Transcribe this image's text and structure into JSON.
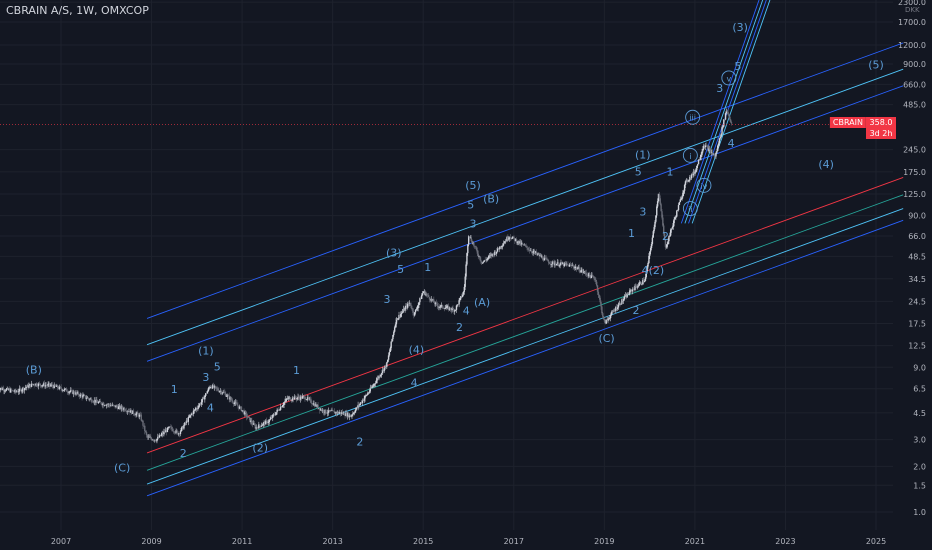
{
  "header": {
    "title": "CBRAIN A/S, 1W, OMXCOP"
  },
  "price_scale": {
    "unit": "DKK",
    "ticks": [
      "2300.0",
      "1700.0",
      "1200.0",
      "900.0",
      "660.0",
      "485.0",
      "245.0",
      "175.0",
      "125.0",
      "90.0",
      "66.0",
      "48.5",
      "34.5",
      "24.5",
      "17.5",
      "12.5",
      "9.0",
      "6.5",
      "4.5",
      "3.0",
      "2.0",
      "1.5",
      "1.0"
    ]
  },
  "time_scale": {
    "ticks": [
      "2007",
      "2009",
      "2011",
      "2013",
      "2015",
      "2017",
      "2019",
      "2021",
      "2023",
      "2025"
    ]
  },
  "last_price": {
    "value": "358.0",
    "countdown": "3d 2h",
    "ticker": "CBRAIN"
  },
  "colors": {
    "background": "#131722",
    "candle": "#b2b5be",
    "wave_label": "#5b9bd5",
    "channel_blue": "#2962ff",
    "channel_cyan": "#4fc3f7",
    "channel_red": "#f23645",
    "channel_green": "#26a69a",
    "last_price": "#f23645"
  },
  "chart_data": {
    "type": "candlestick",
    "scale": "log",
    "ylim": [
      0.8,
      2800
    ],
    "xlim": [
      2005.6,
      2025.6
    ],
    "price_path": [
      [
        2005.6,
        6.6
      ],
      [
        2006.0,
        6.2
      ],
      [
        2006.4,
        7.0
      ],
      [
        2006.8,
        6.8
      ],
      [
        2007.3,
        6.1
      ],
      [
        2007.8,
        5.3
      ],
      [
        2008.4,
        4.8
      ],
      [
        2008.75,
        4.3
      ],
      [
        2008.9,
        3.1
      ],
      [
        2009.1,
        3.0
      ],
      [
        2009.4,
        3.6
      ],
      [
        2009.6,
        3.3
      ],
      [
        2009.9,
        4.5
      ],
      [
        2010.1,
        5.3
      ],
      [
        2010.3,
        6.8
      ],
      [
        2010.6,
        6.1
      ],
      [
        2011.0,
        4.7
      ],
      [
        2011.3,
        3.6
      ],
      [
        2011.6,
        4.0
      ],
      [
        2012.0,
        5.6
      ],
      [
        2012.4,
        5.7
      ],
      [
        2012.8,
        4.6
      ],
      [
        2013.2,
        4.5
      ],
      [
        2013.4,
        4.3
      ],
      [
        2013.8,
        6.2
      ],
      [
        2014.2,
        9.5
      ],
      [
        2014.4,
        18.5
      ],
      [
        2014.7,
        24.0
      ],
      [
        2014.8,
        20.0
      ],
      [
        2015.0,
        28.5
      ],
      [
        2015.3,
        23.0
      ],
      [
        2015.7,
        21.5
      ],
      [
        2015.9,
        28.5
      ],
      [
        2016.0,
        68.0
      ],
      [
        2016.3,
        44.0
      ],
      [
        2016.6,
        52.0
      ],
      [
        2016.9,
        66.0
      ],
      [
        2017.3,
        55.0
      ],
      [
        2017.8,
        44.0
      ],
      [
        2018.3,
        42.0
      ],
      [
        2018.8,
        34.5
      ],
      [
        2019.0,
        17.5
      ],
      [
        2019.3,
        23.0
      ],
      [
        2019.6,
        29.0
      ],
      [
        2019.9,
        34.0
      ],
      [
        2020.1,
        75.0
      ],
      [
        2020.2,
        130.0
      ],
      [
        2020.35,
        55.0
      ],
      [
        2020.6,
        95.0
      ],
      [
        2020.8,
        150.0
      ],
      [
        2021.0,
        175.0
      ],
      [
        2021.2,
        265.0
      ],
      [
        2021.45,
        220.0
      ],
      [
        2021.7,
        450.0
      ],
      [
        2021.82,
        358.0
      ]
    ],
    "last_value": 358.0,
    "wave_labels": [
      "(A)",
      "(B)",
      "(C)",
      "1",
      "2",
      "3",
      "4",
      "5",
      "(1)",
      "(2)",
      "1",
      "2",
      "3",
      "4",
      "5",
      "(3)",
      "(4)",
      "1",
      "2",
      "3",
      "4",
      "5",
      "(5)",
      "(B)",
      "(A)",
      "(C)",
      "1",
      "2",
      "3",
      "4",
      "(2)",
      "5",
      "(1)",
      "i",
      "ii",
      "iii",
      "iv",
      "v",
      "1",
      "2",
      "3",
      "4",
      "5",
      "(3)",
      "(4)",
      "(5)"
    ]
  }
}
